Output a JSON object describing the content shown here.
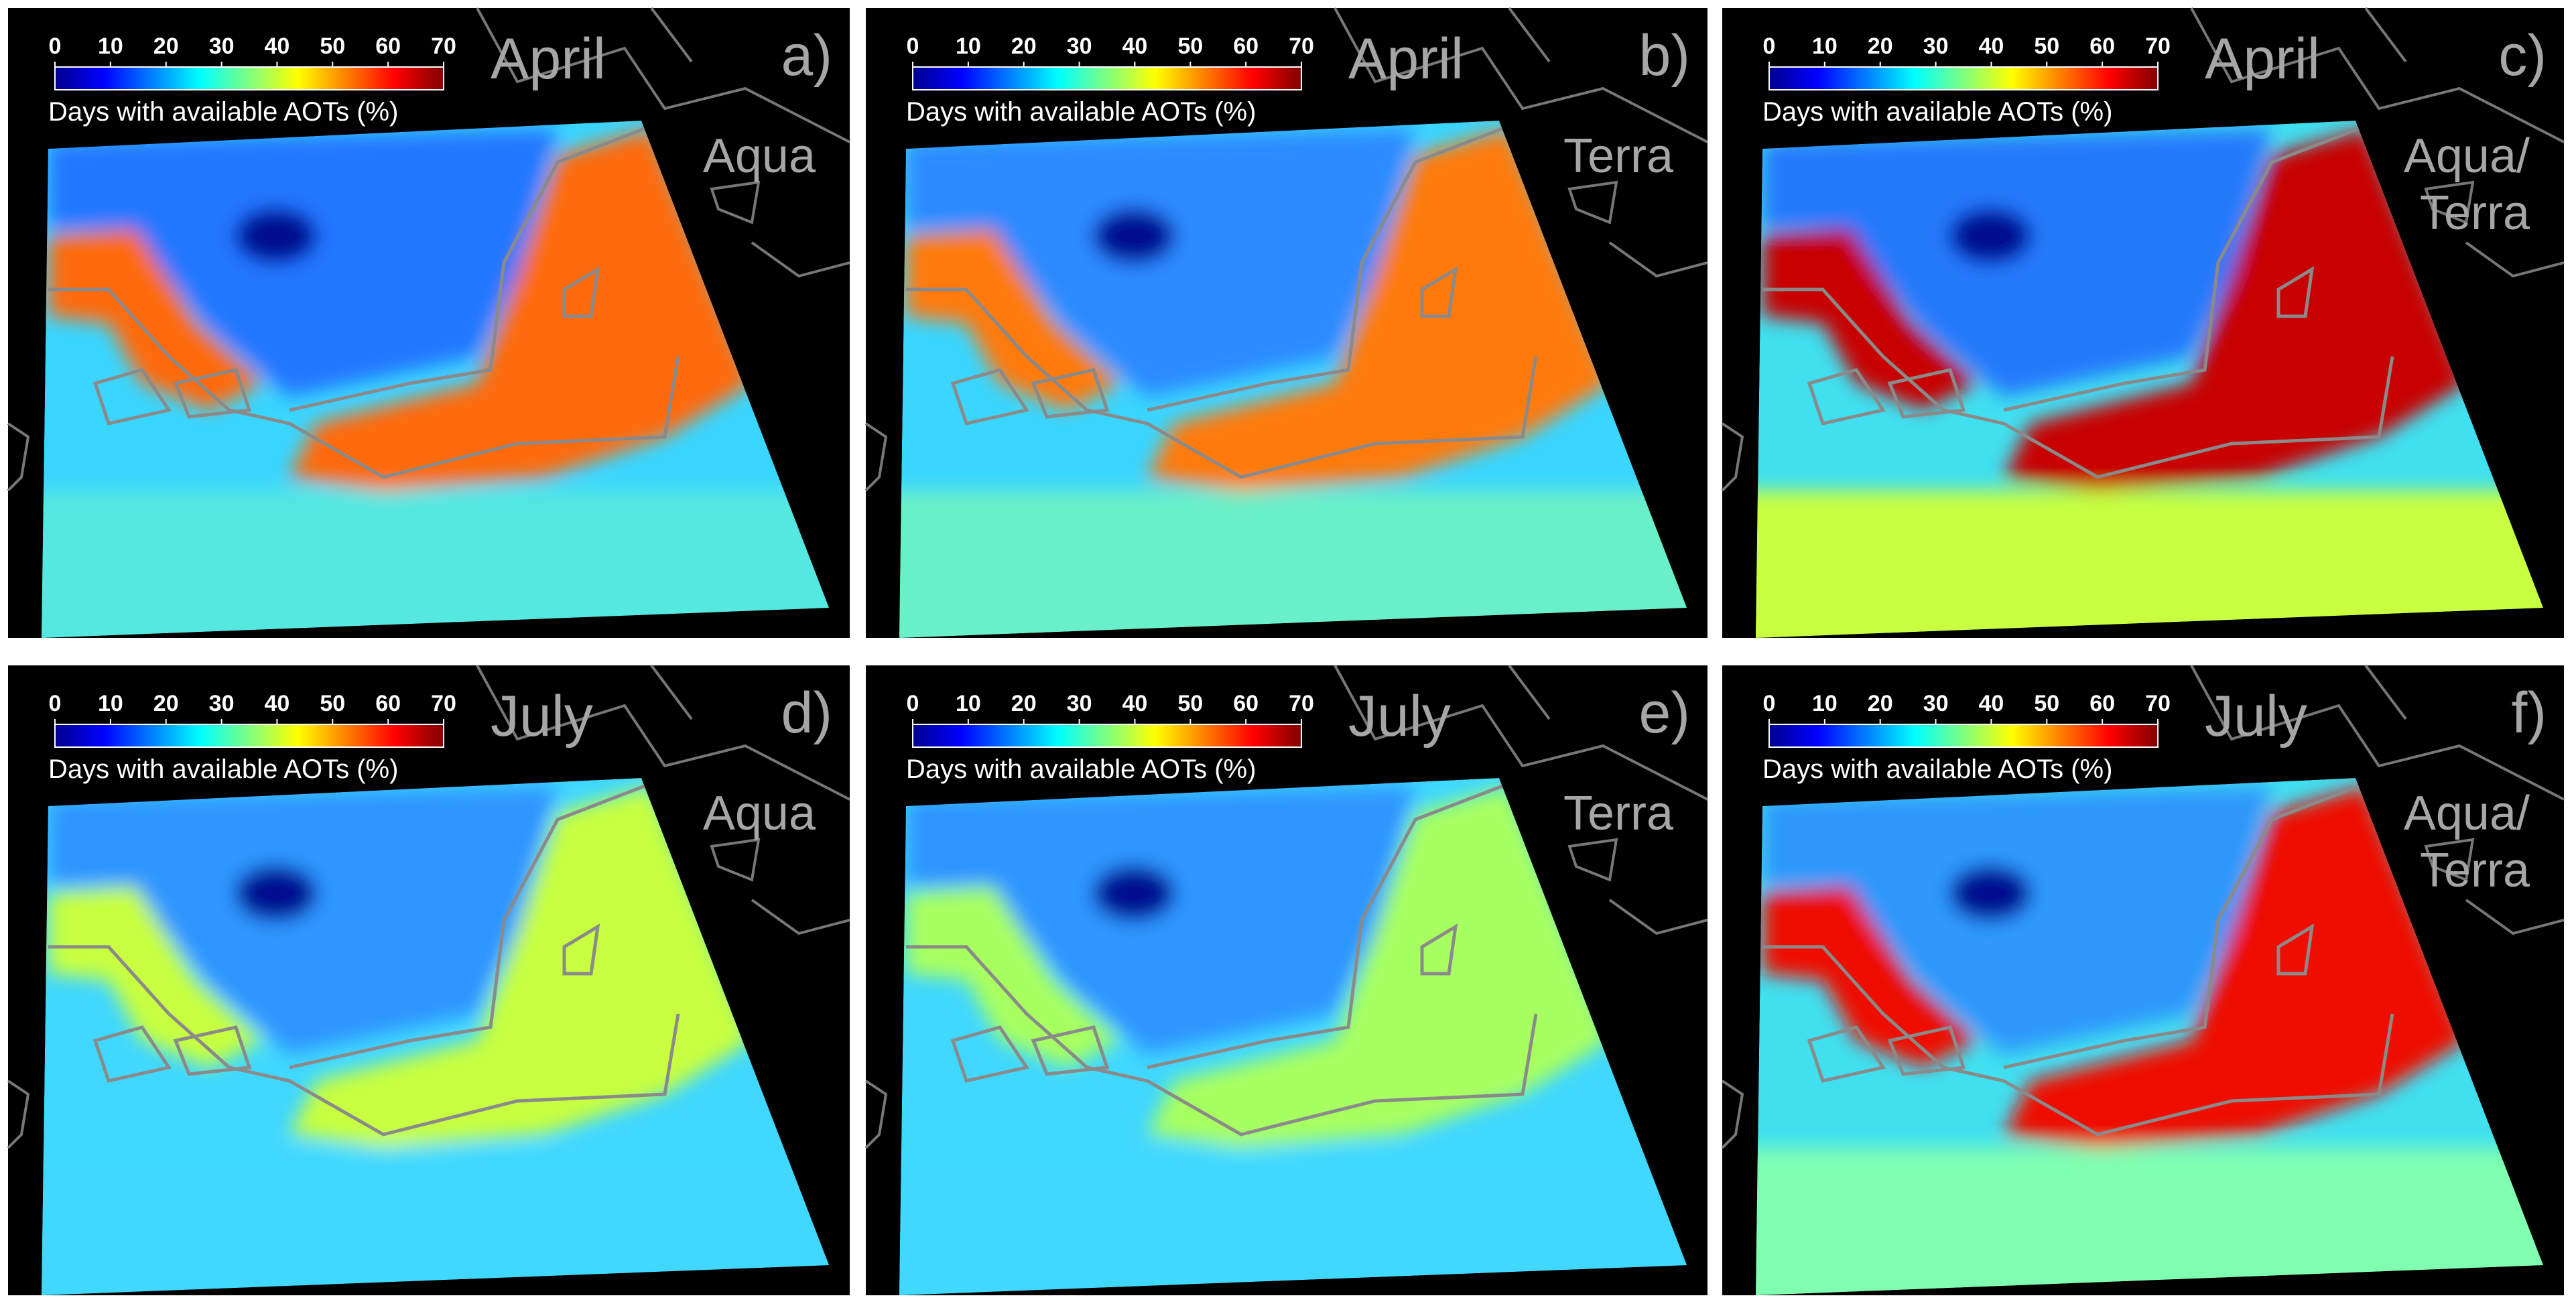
{
  "panels": [
    {
      "letter": "a)",
      "month": "April",
      "satellite": [
        "Aqua"
      ],
      "colorbar": {
        "label": "Days with available AOTs (%)",
        "range": [
          0,
          70
        ],
        "ticks": [
          0,
          10,
          20,
          30,
          40,
          50,
          60,
          70
        ]
      }
    },
    {
      "letter": "b)",
      "month": "April",
      "satellite": [
        "Terra"
      ],
      "colorbar": {
        "label": "Days with available AOTs (%)",
        "range": [
          0,
          70
        ],
        "ticks": [
          0,
          10,
          20,
          30,
          40,
          50,
          60,
          70
        ]
      }
    },
    {
      "letter": "c)",
      "month": "April",
      "satellite": [
        "Aqua/",
        "Terra"
      ],
      "colorbar": {
        "label": "Days with available AOTs (%)",
        "range": [
          0,
          70
        ],
        "ticks": [
          0,
          10,
          20,
          30,
          40,
          50,
          60,
          70
        ]
      }
    },
    {
      "letter": "d)",
      "month": "July",
      "satellite": [
        "Aqua"
      ],
      "colorbar": {
        "label": "Days with available AOTs (%)",
        "range": [
          0,
          70
        ],
        "ticks": [
          0,
          10,
          20,
          30,
          40,
          50,
          60,
          70
        ]
      }
    },
    {
      "letter": "e)",
      "month": "July",
      "satellite": [
        "Terra"
      ],
      "colorbar": {
        "label": "Days with available AOTs (%)",
        "range": [
          0,
          70
        ],
        "ticks": [
          0,
          10,
          20,
          30,
          40,
          50,
          60,
          70
        ]
      }
    },
    {
      "letter": "f)",
      "month": "July",
      "satellite": [
        "Aqua/",
        "Terra"
      ],
      "colorbar": {
        "label": "Days with available AOTs (%)",
        "range": [
          0,
          70
        ],
        "ticks": [
          0,
          10,
          20,
          30,
          40,
          50,
          60,
          70
        ]
      }
    }
  ]
}
